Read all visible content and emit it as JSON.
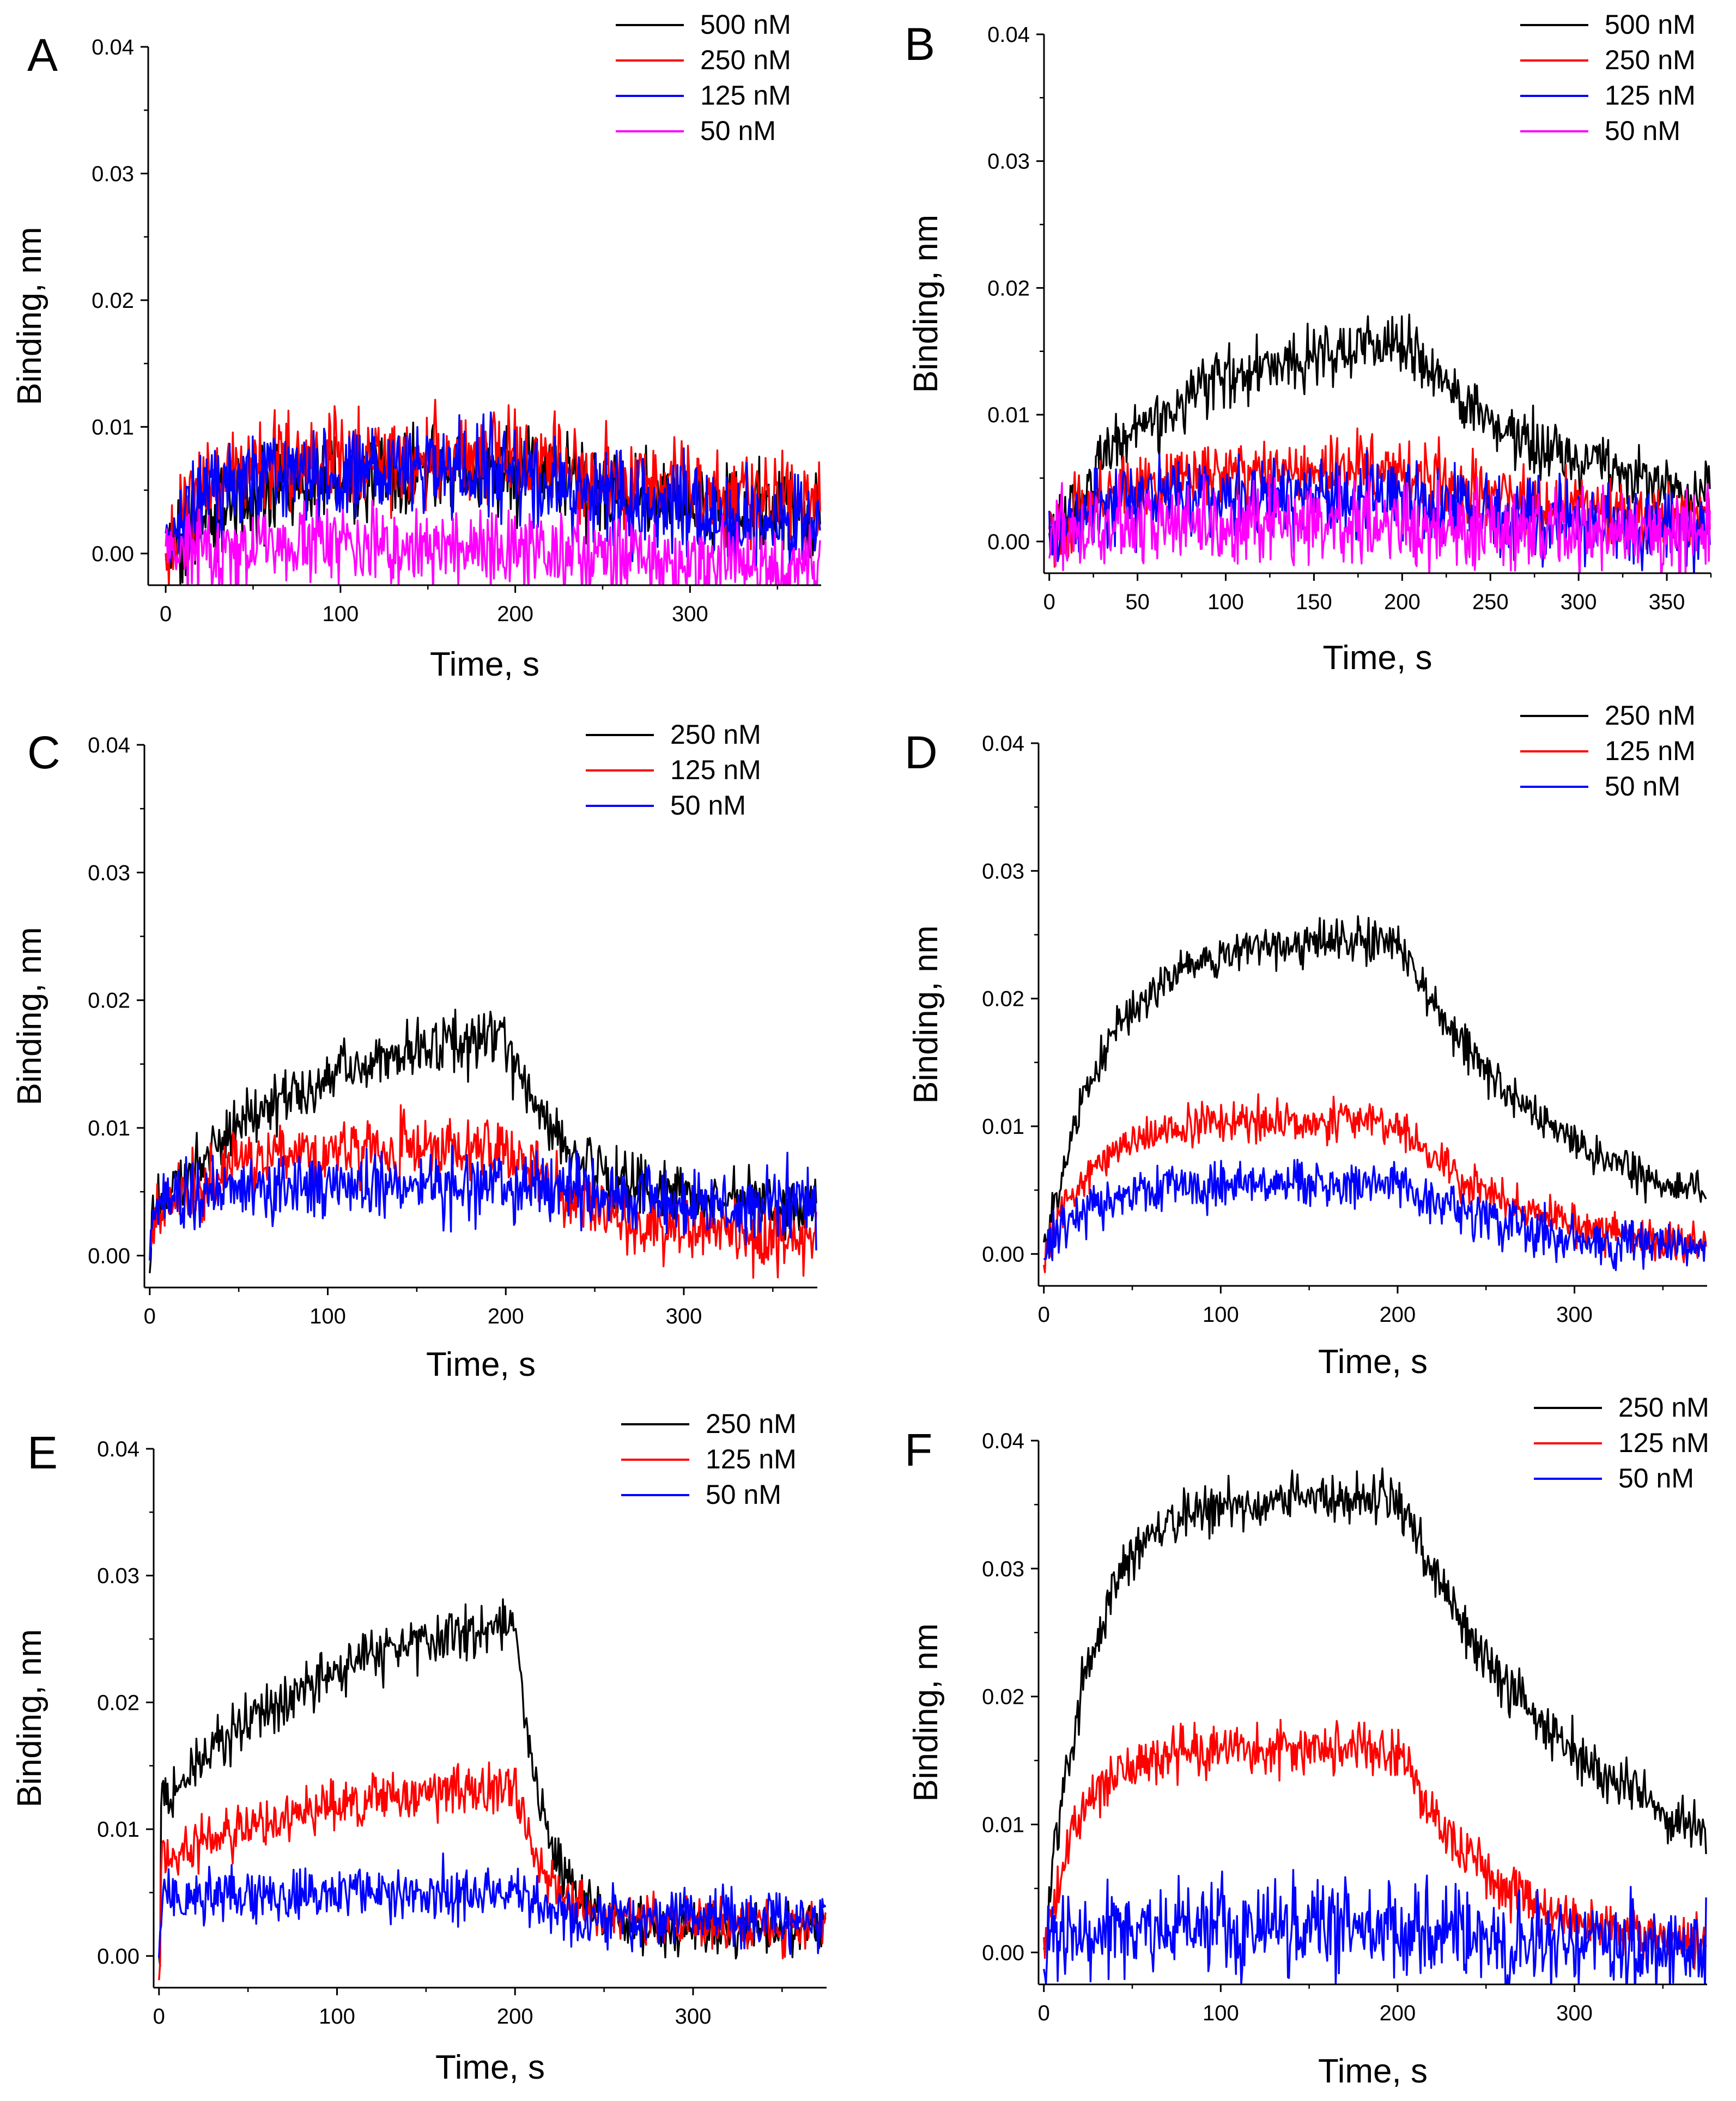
{
  "figure": {
    "panel_count": 6
  },
  "chart_data": [
    {
      "type": "line",
      "panel": "A",
      "xlabel": "Time, s",
      "ylabel": "Binding, nm",
      "xlim": [
        -10,
        375
      ],
      "ylim": [
        -0.0025,
        0.04
      ],
      "xticks": [
        0,
        100,
        200,
        300
      ],
      "yticks": [
        0.0,
        0.01,
        0.02,
        0.03,
        0.04
      ],
      "xtick_labels": [
        "0",
        "100",
        "200",
        "300"
      ],
      "ytick_labels": [
        "0.00",
        "0.01",
        "0.02",
        "0.03",
        "0.04"
      ],
      "legend_position": "top-right",
      "series": [
        {
          "name": "500 nM",
          "color": "#000000",
          "assoc_plateau": 0.007,
          "k_on": 0.02,
          "dissoc_end": 0.002,
          "k_off": 0.01,
          "noise": 0.0018,
          "base_offset": 0.0
        },
        {
          "name": "250 nM",
          "color": "#ff0000",
          "assoc_plateau": 0.0075,
          "k_on": 0.05,
          "dissoc_end": 0.0035,
          "k_off": 0.01,
          "noise": 0.0018,
          "base_offset": 0.0
        },
        {
          "name": "125 nM",
          "color": "#0000ff",
          "assoc_plateau": 0.0065,
          "k_on": 0.05,
          "dissoc_end": 0.0015,
          "k_off": 0.01,
          "noise": 0.0018,
          "base_offset": 0.0
        },
        {
          "name": "50 nM",
          "color": "#ff00ff",
          "assoc_plateau": 0.0005,
          "k_on": 0.05,
          "dissoc_end": -0.0015,
          "k_off": 0.01,
          "noise": 0.0016,
          "base_offset": 0.0
        }
      ]
    },
    {
      "type": "line",
      "panel": "B",
      "xlabel": "Time, s",
      "ylabel": "Binding, nm",
      "xlim": [
        -3,
        375
      ],
      "ylim": [
        -0.0025,
        0.04
      ],
      "xticks": [
        0,
        50,
        100,
        150,
        200,
        250,
        300,
        350
      ],
      "yticks": [
        0.0,
        0.01,
        0.02,
        0.03,
        0.04
      ],
      "xtick_labels": [
        "0",
        "50",
        "100",
        "150",
        "200",
        "250",
        "300",
        "350"
      ],
      "ytick_labels": [
        "0.00",
        "0.01",
        "0.02",
        "0.03",
        "0.04"
      ],
      "legend_position": "top-right",
      "series": [
        {
          "name": "500 nM",
          "color": "#000000",
          "assoc_plateau": 0.0165,
          "k_on": 0.015,
          "dissoc_end": 0.002,
          "k_off": 0.012,
          "noise": 0.0012,
          "base_offset": 0.0
        },
        {
          "name": "250 nM",
          "color": "#ff0000",
          "assoc_plateau": 0.0055,
          "k_on": 0.03,
          "dissoc_end": 0.001,
          "k_off": 0.01,
          "noise": 0.0014,
          "base_offset": 0.0
        },
        {
          "name": "125 nM",
          "color": "#0000ff",
          "assoc_plateau": 0.0035,
          "k_on": 0.05,
          "dissoc_end": 0.0005,
          "k_off": 0.01,
          "noise": 0.0016,
          "base_offset": 0.0
        },
        {
          "name": "50 nM",
          "color": "#ff00ff",
          "assoc_plateau": 0.0015,
          "k_on": 0.05,
          "dissoc_end": 0.0005,
          "k_off": 0.01,
          "noise": 0.0016,
          "base_offset": 0.0
        }
      ]
    },
    {
      "type": "line",
      "panel": "C",
      "xlabel": "Time, s",
      "ylabel": "Binding, nm",
      "xlim": [
        -3,
        375
      ],
      "ylim": [
        -0.0025,
        0.04
      ],
      "xticks": [
        0,
        100,
        200,
        300
      ],
      "yticks": [
        0.0,
        0.01,
        0.02,
        0.03,
        0.04
      ],
      "xtick_labels": [
        "0",
        "100",
        "200",
        "300"
      ],
      "ytick_labels": [
        "0.00",
        "0.01",
        "0.02",
        "0.03",
        "0.04"
      ],
      "legend_position": "top-right",
      "series": [
        {
          "name": "250 nM",
          "color": "#000000",
          "assoc_plateau": 0.0185,
          "k_on": 0.012,
          "dissoc_end": 0.004,
          "k_off": 0.03,
          "noise": 0.0012,
          "base_offset": 0.003
        },
        {
          "name": "125 nM",
          "color": "#ff0000",
          "assoc_plateau": 0.0085,
          "k_on": 0.03,
          "dissoc_end": 0.001,
          "k_off": 0.02,
          "noise": 0.0013,
          "base_offset": 0.002
        },
        {
          "name": "50 nM",
          "color": "#0000ff",
          "assoc_plateau": 0.0055,
          "k_on": 0.05,
          "dissoc_end": 0.004,
          "k_off": 0.02,
          "noise": 0.0014,
          "base_offset": 0.003
        }
      ]
    },
    {
      "type": "line",
      "panel": "D",
      "xlabel": "Time, s",
      "ylabel": "Binding, nm",
      "xlim": [
        -3,
        375
      ],
      "ylim": [
        -0.0025,
        0.04
      ],
      "xticks": [
        0,
        100,
        200,
        300
      ],
      "yticks": [
        0.0,
        0.01,
        0.02,
        0.03,
        0.04
      ],
      "xtick_labels": [
        "0",
        "100",
        "200",
        "300"
      ],
      "ytick_labels": [
        "0.00",
        "0.01",
        "0.02",
        "0.03",
        "0.04"
      ],
      "legend_position": "top-right",
      "series": [
        {
          "name": "250 nM",
          "color": "#000000",
          "assoc_plateau": 0.0245,
          "k_on": 0.03,
          "dissoc_end": 0.002,
          "k_off": 0.012,
          "noise": 0.0008,
          "base_offset": 0.0
        },
        {
          "name": "125 nM",
          "color": "#ff0000",
          "assoc_plateau": 0.0105,
          "k_on": 0.035,
          "dissoc_end": 0.0,
          "k_off": 0.015,
          "noise": 0.0008,
          "base_offset": 0.0
        },
        {
          "name": "50 nM",
          "color": "#0000ff",
          "assoc_plateau": 0.0055,
          "k_on": 0.04,
          "dissoc_end": 0.0,
          "k_off": 0.015,
          "noise": 0.0009,
          "base_offset": 0.0
        }
      ]
    },
    {
      "type": "line",
      "panel": "E",
      "xlabel": "Time, s",
      "ylabel": "Binding, nm",
      "xlim": [
        -3,
        375
      ],
      "ylim": [
        -0.0025,
        0.04
      ],
      "xticks": [
        0,
        100,
        200,
        300
      ],
      "yticks": [
        0.0,
        0.01,
        0.02,
        0.03,
        0.04
      ],
      "xtick_labels": [
        "0",
        "100",
        "200",
        "300"
      ],
      "ytick_labels": [
        "0.00",
        "0.01",
        "0.02",
        "0.03",
        "0.04"
      ],
      "legend_position": "top-right",
      "series": [
        {
          "name": "250 nM",
          "color": "#000000",
          "assoc_plateau": 0.0285,
          "k_on": 0.01,
          "dissoc_end": 0.002,
          "k_off": 0.06,
          "noise": 0.001,
          "base_offset": 0.012
        },
        {
          "name": "125 nM",
          "color": "#ff0000",
          "assoc_plateau": 0.0145,
          "k_on": 0.01,
          "dissoc_end": 0.0025,
          "k_off": 0.06,
          "noise": 0.001,
          "base_offset": 0.0075
        },
        {
          "name": "50 nM",
          "color": "#0000ff",
          "assoc_plateau": 0.005,
          "k_on": 0.05,
          "dissoc_end": 0.003,
          "k_off": 0.05,
          "noise": 0.0011,
          "base_offset": 0.004
        }
      ]
    },
    {
      "type": "line",
      "panel": "F",
      "xlabel": "Time, s",
      "ylabel": "Binding, nm",
      "xlim": [
        -3,
        375
      ],
      "ylim": [
        -0.0025,
        0.04
      ],
      "xticks": [
        0,
        100,
        200,
        300
      ],
      "yticks": [
        0.0,
        0.01,
        0.02,
        0.03,
        0.04
      ],
      "xtick_labels": [
        "0",
        "100",
        "200",
        "300"
      ],
      "ytick_labels": [
        "0.00",
        "0.01",
        "0.02",
        "0.03",
        "0.04"
      ],
      "legend_position": "top-right",
      "series": [
        {
          "name": "250 nM",
          "color": "#000000",
          "assoc_plateau": 0.0355,
          "k_on": 0.04,
          "dissoc_end": 0.004,
          "k_off": 0.01,
          "noise": 0.001,
          "base_offset": 0.0
        },
        {
          "name": "125 nM",
          "color": "#ff0000",
          "assoc_plateau": 0.016,
          "k_on": 0.05,
          "dissoc_end": 0.0005,
          "k_off": 0.02,
          "noise": 0.001,
          "base_offset": 0.0
        },
        {
          "name": "50 nM",
          "color": "#0000ff",
          "assoc_plateau": 0.002,
          "k_on": 0.05,
          "dissoc_end": 0.0005,
          "k_off": 0.02,
          "noise": 0.0018,
          "base_offset": 0.0
        }
      ]
    }
  ]
}
